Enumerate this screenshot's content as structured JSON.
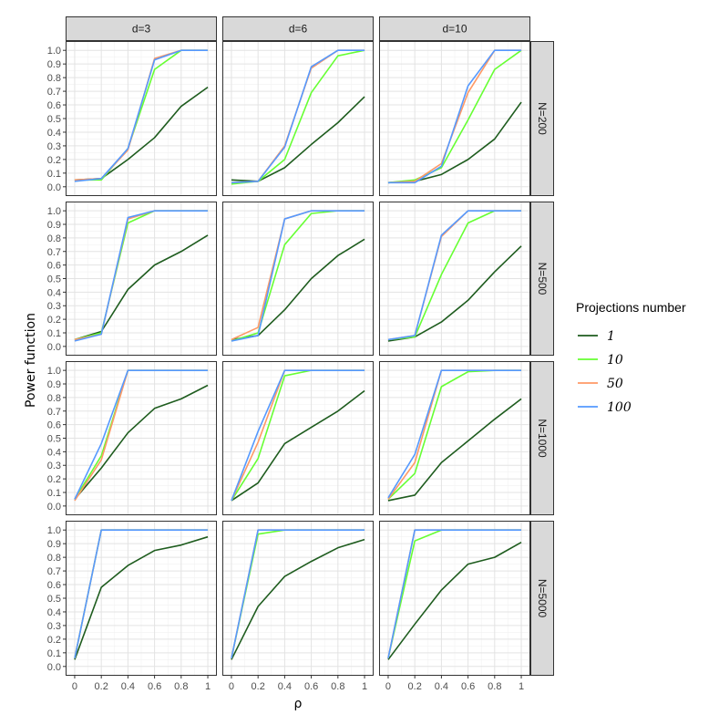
{
  "chart_data": {
    "type": "line",
    "facet_columns": [
      "d=3",
      "d=6",
      "d=10"
    ],
    "facet_rows": [
      "N=200",
      "N=500",
      "N=1000",
      "N=5000"
    ],
    "x": [
      0,
      0.2,
      0.4,
      0.6,
      0.8,
      1
    ],
    "x_ticks": [
      "0",
      "0.2",
      "0.4",
      "0.6",
      "0.8",
      "1"
    ],
    "y_ticks": [
      "0.0",
      "0.1",
      "0.2",
      "0.3",
      "0.4",
      "0.5",
      "0.6",
      "0.7",
      "0.8",
      "0.9",
      "1.0"
    ],
    "xlim": [
      0,
      1
    ],
    "ylim": [
      0,
      1
    ],
    "xlabel": "ρ",
    "ylabel": "Power function",
    "grid": true,
    "legend": {
      "title": "Projections number",
      "position": "right",
      "entries": [
        "1",
        "10",
        "50",
        "100"
      ]
    },
    "series_colors": [
      "#1e5c1e",
      "#66ff33",
      "#ff9966",
      "#5599ff"
    ],
    "panels": [
      {
        "row": "N=200",
        "col": "d=3",
        "series": [
          {
            "name": "1",
            "values": [
              0.05,
              0.06,
              0.2,
              0.36,
              0.59,
              0.73
            ]
          },
          {
            "name": "10",
            "values": [
              0.05,
              0.05,
              0.28,
              0.86,
              1.0,
              1.0
            ]
          },
          {
            "name": "50",
            "values": [
              0.05,
              0.06,
              0.27,
              0.94,
              1.0,
              1.0
            ]
          },
          {
            "name": "100",
            "values": [
              0.04,
              0.06,
              0.28,
              0.93,
              1.0,
              1.0
            ]
          }
        ]
      },
      {
        "row": "N=200",
        "col": "d=6",
        "series": [
          {
            "name": "1",
            "values": [
              0.05,
              0.04,
              0.14,
              0.31,
              0.47,
              0.66
            ]
          },
          {
            "name": "10",
            "values": [
              0.02,
              0.04,
              0.2,
              0.69,
              0.96,
              1.0
            ]
          },
          {
            "name": "50",
            "values": [
              0.03,
              0.04,
              0.3,
              0.87,
              1.0,
              1.0
            ]
          },
          {
            "name": "100",
            "values": [
              0.03,
              0.04,
              0.29,
              0.88,
              1.0,
              1.0
            ]
          }
        ]
      },
      {
        "row": "N=200",
        "col": "d=10",
        "series": [
          {
            "name": "1",
            "values": [
              0.03,
              0.04,
              0.09,
              0.2,
              0.35,
              0.62
            ]
          },
          {
            "name": "10",
            "values": [
              0.03,
              0.05,
              0.14,
              0.49,
              0.86,
              1.0
            ]
          },
          {
            "name": "50",
            "values": [
              0.03,
              0.04,
              0.17,
              0.69,
              1.0,
              1.0
            ]
          },
          {
            "name": "100",
            "values": [
              0.03,
              0.03,
              0.15,
              0.74,
              1.0,
              1.0
            ]
          }
        ]
      },
      {
        "row": "N=500",
        "col": "d=3",
        "series": [
          {
            "name": "1",
            "values": [
              0.05,
              0.11,
              0.42,
              0.6,
              0.7,
              0.82
            ]
          },
          {
            "name": "10",
            "values": [
              0.05,
              0.1,
              0.91,
              1.0,
              1.0,
              1.0
            ]
          },
          {
            "name": "50",
            "values": [
              0.05,
              0.09,
              0.94,
              1.0,
              1.0,
              1.0
            ]
          },
          {
            "name": "100",
            "values": [
              0.04,
              0.09,
              0.95,
              1.0,
              1.0,
              1.0
            ]
          }
        ]
      },
      {
        "row": "N=500",
        "col": "d=6",
        "series": [
          {
            "name": "1",
            "values": [
              0.05,
              0.08,
              0.27,
              0.5,
              0.67,
              0.79
            ]
          },
          {
            "name": "10",
            "values": [
              0.04,
              0.1,
              0.75,
              0.98,
              1.0,
              1.0
            ]
          },
          {
            "name": "50",
            "values": [
              0.05,
              0.14,
              0.94,
              1.0,
              1.0,
              1.0
            ]
          },
          {
            "name": "100",
            "values": [
              0.04,
              0.08,
              0.94,
              1.0,
              1.0,
              1.0
            ]
          }
        ]
      },
      {
        "row": "N=500",
        "col": "d=10",
        "series": [
          {
            "name": "1",
            "values": [
              0.04,
              0.07,
              0.18,
              0.34,
              0.55,
              0.74
            ]
          },
          {
            "name": "10",
            "values": [
              0.05,
              0.07,
              0.53,
              0.91,
              1.0,
              1.0
            ]
          },
          {
            "name": "50",
            "values": [
              0.05,
              0.08,
              0.81,
              1.0,
              1.0,
              1.0
            ]
          },
          {
            "name": "100",
            "values": [
              0.05,
              0.08,
              0.82,
              1.0,
              1.0,
              1.0
            ]
          }
        ]
      },
      {
        "row": "N=1000",
        "col": "d=3",
        "series": [
          {
            "name": "1",
            "values": [
              0.05,
              0.28,
              0.54,
              0.72,
              0.79,
              0.89
            ]
          },
          {
            "name": "10",
            "values": [
              0.05,
              0.37,
              1.0,
              1.0,
              1.0,
              1.0
            ]
          },
          {
            "name": "50",
            "values": [
              0.04,
              0.34,
              1.0,
              1.0,
              1.0,
              1.0
            ]
          },
          {
            "name": "100",
            "values": [
              0.05,
              0.46,
              1.0,
              1.0,
              1.0,
              1.0
            ]
          }
        ]
      },
      {
        "row": "N=1000",
        "col": "d=6",
        "series": [
          {
            "name": "1",
            "values": [
              0.04,
              0.17,
              0.46,
              0.58,
              0.7,
              0.85
            ]
          },
          {
            "name": "10",
            "values": [
              0.04,
              0.35,
              0.96,
              1.0,
              1.0,
              1.0
            ]
          },
          {
            "name": "50",
            "values": [
              0.04,
              0.47,
              1.0,
              1.0,
              1.0,
              1.0
            ]
          },
          {
            "name": "100",
            "values": [
              0.04,
              0.55,
              1.0,
              1.0,
              1.0,
              1.0
            ]
          }
        ]
      },
      {
        "row": "N=1000",
        "col": "d=10",
        "series": [
          {
            "name": "1",
            "values": [
              0.04,
              0.08,
              0.32,
              0.48,
              0.64,
              0.79
            ]
          },
          {
            "name": "10",
            "values": [
              0.05,
              0.24,
              0.88,
              0.99,
              1.0,
              1.0
            ]
          },
          {
            "name": "50",
            "values": [
              0.05,
              0.32,
              1.0,
              1.0,
              1.0,
              1.0
            ]
          },
          {
            "name": "100",
            "values": [
              0.06,
              0.38,
              1.0,
              1.0,
              1.0,
              1.0
            ]
          }
        ]
      },
      {
        "row": "N=5000",
        "col": "d=3",
        "series": [
          {
            "name": "1",
            "values": [
              0.05,
              0.58,
              0.74,
              0.85,
              0.89,
              0.95
            ]
          },
          {
            "name": "10",
            "values": [
              0.06,
              1.0,
              1.0,
              1.0,
              1.0,
              1.0
            ]
          },
          {
            "name": "50",
            "values": [
              0.06,
              1.0,
              1.0,
              1.0,
              1.0,
              1.0
            ]
          },
          {
            "name": "100",
            "values": [
              0.06,
              1.0,
              1.0,
              1.0,
              1.0,
              1.0
            ]
          }
        ]
      },
      {
        "row": "N=5000",
        "col": "d=6",
        "series": [
          {
            "name": "1",
            "values": [
              0.05,
              0.44,
              0.66,
              0.77,
              0.87,
              0.93
            ]
          },
          {
            "name": "10",
            "values": [
              0.06,
              0.97,
              1.0,
              1.0,
              1.0,
              1.0
            ]
          },
          {
            "name": "50",
            "values": [
              0.06,
              1.0,
              1.0,
              1.0,
              1.0,
              1.0
            ]
          },
          {
            "name": "100",
            "values": [
              0.06,
              1.0,
              1.0,
              1.0,
              1.0,
              1.0
            ]
          }
        ]
      },
      {
        "row": "N=5000",
        "col": "d=10",
        "series": [
          {
            "name": "1",
            "values": [
              0.05,
              0.31,
              0.56,
              0.75,
              0.8,
              0.91
            ]
          },
          {
            "name": "10",
            "values": [
              0.06,
              0.92,
              1.0,
              1.0,
              1.0,
              1.0
            ]
          },
          {
            "name": "50",
            "values": [
              0.06,
              1.0,
              1.0,
              1.0,
              1.0,
              1.0
            ]
          },
          {
            "name": "100",
            "values": [
              0.06,
              1.0,
              1.0,
              1.0,
              1.0,
              1.0
            ]
          }
        ]
      }
    ]
  }
}
